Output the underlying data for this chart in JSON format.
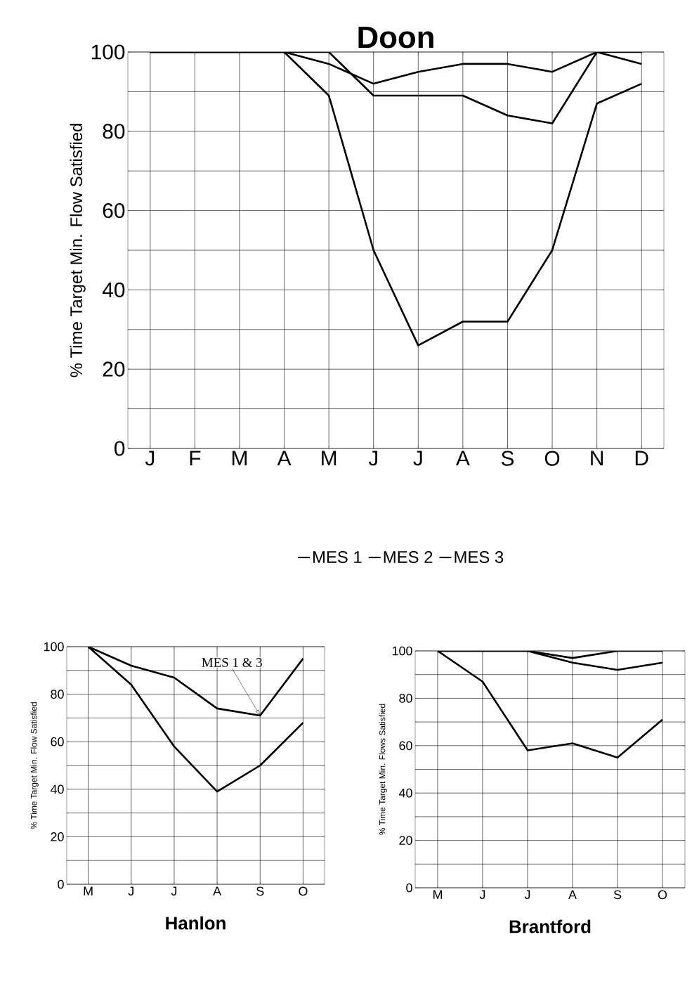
{
  "chart_data": [
    {
      "type": "line",
      "title": "Doon",
      "ylabel": "% Time Target Min. Flow Satisfied",
      "categories": [
        "J",
        "F",
        "M",
        "A",
        "M",
        "J",
        "J",
        "A",
        "S",
        "O",
        "N",
        "D"
      ],
      "series": [
        {
          "name": "MES 1",
          "color": "#000000",
          "values": [
            100,
            100,
            100,
            100,
            97,
            92,
            95,
            97,
            97,
            95,
            100,
            97
          ]
        },
        {
          "name": "MES 2",
          "color": "#000000",
          "values": [
            100,
            100,
            100,
            100,
            89,
            50,
            26,
            32,
            32,
            50,
            87,
            92
          ]
        },
        {
          "name": "MES 3",
          "color": "#000000",
          "values": [
            100,
            100,
            100,
            100,
            100,
            89,
            89,
            89,
            84,
            82,
            100,
            100
          ]
        }
      ],
      "ylim": [
        0,
        100
      ],
      "yticks": [
        0,
        20,
        40,
        60,
        80,
        100
      ],
      "grid": true,
      "legend": "bottom"
    },
    {
      "type": "line",
      "title": "Hanlon",
      "ylabel": "% Time Target Min. Flow Satisfied",
      "categories": [
        "M",
        "J",
        "J",
        "A",
        "S",
        "O"
      ],
      "series": [
        {
          "color": "#000000",
          "values": [
            100,
            92,
            87,
            74,
            71,
            95
          ]
        },
        {
          "color": "#000000",
          "values": [
            100,
            84,
            58,
            39,
            50,
            68
          ]
        }
      ],
      "ylim": [
        0,
        100
      ],
      "yticks": [
        0,
        20,
        40,
        60,
        80,
        100
      ],
      "grid": true,
      "annotations": [
        {
          "text": "MES 1 & 3",
          "x": "S",
          "y": 71
        }
      ]
    },
    {
      "type": "line",
      "title": "Brantford",
      "ylabel": "% Time Target Min. Flows Satisfied",
      "categories": [
        "M",
        "J",
        "J",
        "A",
        "S",
        "O"
      ],
      "series": [
        {
          "color": "#000000",
          "values": [
            100,
            100,
            100,
            97,
            100,
            100
          ]
        },
        {
          "color": "#000000",
          "values": [
            100,
            100,
            100,
            95,
            92,
            95
          ]
        },
        {
          "color": "#000000",
          "values": [
            100,
            87,
            58,
            61,
            55,
            71
          ]
        }
      ],
      "ylim": [
        0,
        100
      ],
      "yticks": [
        0,
        20,
        40,
        60,
        80,
        100
      ],
      "grid": true
    }
  ]
}
